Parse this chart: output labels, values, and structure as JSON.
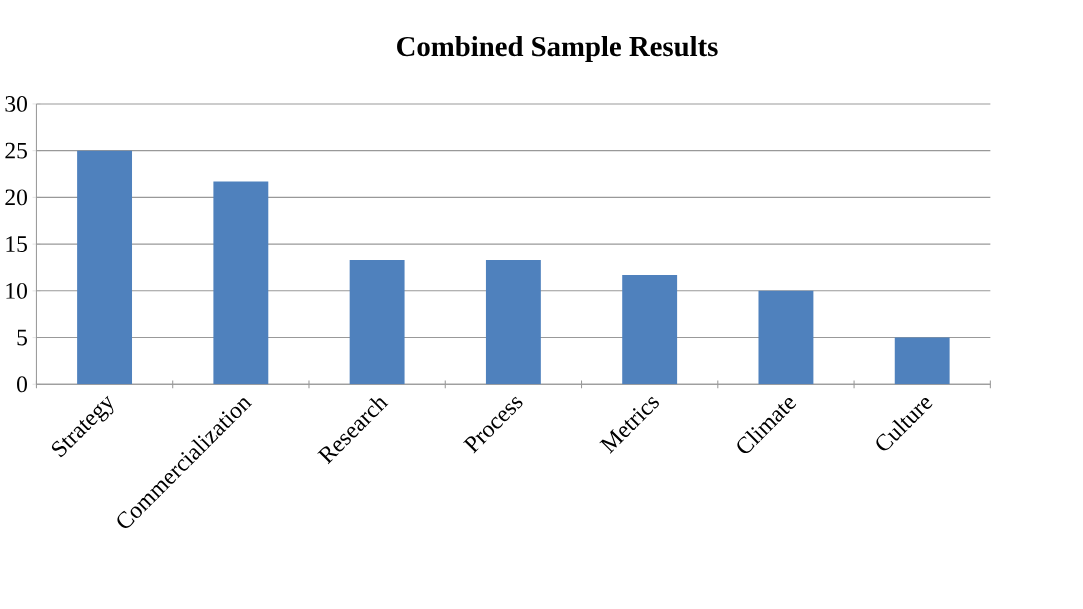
{
  "chart_data": {
    "type": "bar",
    "title": "Combined Sample Results",
    "categories": [
      "Strategy",
      "Commercialization",
      "Research",
      "Process",
      "Metrics",
      "Climate",
      "Culture"
    ],
    "values": [
      25,
      21.7,
      13.3,
      13.3,
      11.7,
      10,
      5
    ],
    "color": "#4f81bd",
    "ylim": [
      0,
      30
    ],
    "yticks": [
      0,
      5,
      10,
      15,
      20,
      25,
      30
    ],
    "grid": "y"
  }
}
